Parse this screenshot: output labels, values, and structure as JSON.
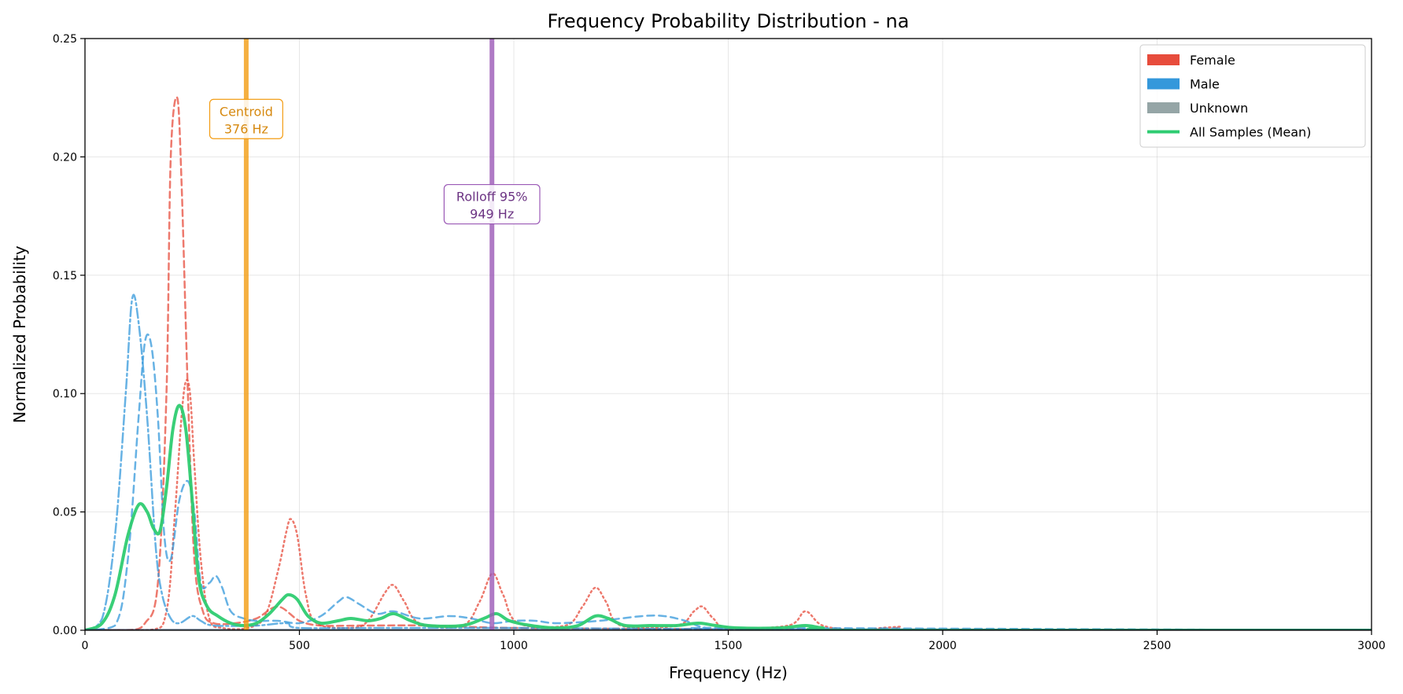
{
  "chart_data": {
    "type": "line",
    "title": "Frequency Probability Distribution - na",
    "xlabel": "Frequency (Hz)",
    "ylabel": "Normalized Probability",
    "xlim": [
      0,
      3000
    ],
    "ylim": [
      0,
      0.25
    ],
    "x_ticks": [
      0,
      500,
      1000,
      1500,
      2000,
      2500,
      3000
    ],
    "y_ticks": [
      0.0,
      0.05,
      0.1,
      0.15,
      0.2,
      0.25
    ],
    "x_tick_labels": [
      "0",
      "500",
      "1000",
      "1500",
      "2000",
      "2500",
      "3000"
    ],
    "y_tick_labels": [
      "0.00",
      "0.05",
      "0.10",
      "0.15",
      "0.20",
      "0.25"
    ],
    "grid": true,
    "legend_position": "top-right",
    "legend": [
      {
        "label": "Female",
        "color": "#e74c3c",
        "kind": "patch"
      },
      {
        "label": "Male",
        "color": "#3498db",
        "kind": "patch"
      },
      {
        "label": "Unknown",
        "color": "#95a5a6",
        "kind": "patch"
      },
      {
        "label": "All Samples (Mean)",
        "color": "#2ecc71",
        "kind": "line"
      }
    ],
    "markers": [
      {
        "label": "Centroid",
        "value_label": "376 Hz",
        "x": 376,
        "color": "#f39c12",
        "text_color": "#d68910",
        "label_y": 0.216
      },
      {
        "label": "Rolloff 95%",
        "value_label": "949 Hz",
        "x": 949,
        "color": "#9b59b6",
        "text_color": "#6c3483",
        "label_y": 0.18
      }
    ],
    "series": [
      {
        "group": "Female",
        "color": "#e74c3c",
        "dash": "8,5",
        "width": 2.5,
        "opacity": 0.75,
        "points": [
          [
            0,
            0
          ],
          [
            100,
            0
          ],
          [
            140,
            0.003
          ],
          [
            170,
            0.02
          ],
          [
            190,
            0.1
          ],
          [
            200,
            0.2
          ],
          [
            215,
            0.225
          ],
          [
            225,
            0.19
          ],
          [
            240,
            0.1
          ],
          [
            255,
            0.03
          ],
          [
            275,
            0.008
          ],
          [
            300,
            0.003
          ],
          [
            350,
            0.003
          ],
          [
            400,
            0.005
          ],
          [
            450,
            0.01
          ],
          [
            500,
            0.004
          ],
          [
            550,
            0.002
          ],
          [
            650,
            0.002
          ],
          [
            800,
            0.002
          ],
          [
            1000,
            0.001
          ],
          [
            1500,
            0.0005
          ],
          [
            3000,
            0
          ]
        ]
      },
      {
        "group": "Female",
        "color": "#e74c3c",
        "dash": "2,4",
        "width": 2.5,
        "opacity": 0.75,
        "points": [
          [
            0,
            0
          ],
          [
            150,
            0
          ],
          [
            190,
            0.008
          ],
          [
            210,
            0.05
          ],
          [
            225,
            0.09
          ],
          [
            235,
            0.105
          ],
          [
            245,
            0.1
          ],
          [
            255,
            0.07
          ],
          [
            270,
            0.03
          ],
          [
            290,
            0.005
          ],
          [
            320,
            0.001
          ],
          [
            380,
            0.001
          ],
          [
            420,
            0.006
          ],
          [
            450,
            0.025
          ],
          [
            470,
            0.042
          ],
          [
            480,
            0.047
          ],
          [
            495,
            0.04
          ],
          [
            515,
            0.015
          ],
          [
            540,
            0.003
          ],
          [
            620,
            0.001
          ],
          [
            660,
            0.004
          ],
          [
            700,
            0.016
          ],
          [
            720,
            0.019
          ],
          [
            745,
            0.012
          ],
          [
            780,
            0.003
          ],
          [
            880,
            0.002
          ],
          [
            920,
            0.012
          ],
          [
            950,
            0.024
          ],
          [
            975,
            0.015
          ],
          [
            1010,
            0.003
          ],
          [
            1120,
            0.002
          ],
          [
            1160,
            0.01
          ],
          [
            1190,
            0.018
          ],
          [
            1215,
            0.012
          ],
          [
            1250,
            0.002
          ],
          [
            1380,
            0.002
          ],
          [
            1420,
            0.008
          ],
          [
            1440,
            0.01
          ],
          [
            1465,
            0.005
          ],
          [
            1500,
            0.001
          ],
          [
            1640,
            0.002
          ],
          [
            1680,
            0.008
          ],
          [
            1720,
            0.002
          ],
          [
            1800,
            0
          ],
          [
            1880,
            0
          ],
          [
            1900,
            0.0015
          ],
          [
            1930,
            0
          ],
          [
            3000,
            0
          ]
        ]
      },
      {
        "group": "Male",
        "color": "#3498db",
        "dash": "12,4,3,4",
        "width": 2.5,
        "opacity": 0.75,
        "points": [
          [
            0,
            0
          ],
          [
            40,
            0.005
          ],
          [
            70,
            0.04
          ],
          [
            95,
            0.1
          ],
          [
            110,
            0.14
          ],
          [
            125,
            0.13
          ],
          [
            145,
            0.09
          ],
          [
            165,
            0.035
          ],
          [
            180,
            0.015
          ],
          [
            200,
            0.005
          ],
          [
            220,
            0.003
          ],
          [
            250,
            0.006
          ],
          [
            270,
            0.004
          ],
          [
            300,
            0.002
          ],
          [
            400,
            0.002
          ],
          [
            470,
            0.003
          ],
          [
            500,
            0.001
          ],
          [
            700,
            0.001
          ],
          [
            1000,
            0.001
          ],
          [
            1500,
            0.0005
          ],
          [
            3000,
            0
          ]
        ]
      },
      {
        "group": "Male",
        "color": "#3498db",
        "dash": "9,6",
        "width": 2.5,
        "opacity": 0.75,
        "points": [
          [
            0,
            0
          ],
          [
            70,
            0.002
          ],
          [
            100,
            0.03
          ],
          [
            125,
            0.09
          ],
          [
            140,
            0.122
          ],
          [
            155,
            0.12
          ],
          [
            170,
            0.09
          ],
          [
            185,
            0.04
          ],
          [
            200,
            0.03
          ],
          [
            220,
            0.055
          ],
          [
            240,
            0.063
          ],
          [
            255,
            0.05
          ],
          [
            270,
            0.02
          ],
          [
            290,
            0.02
          ],
          [
            305,
            0.023
          ],
          [
            320,
            0.018
          ],
          [
            340,
            0.008
          ],
          [
            370,
            0.005
          ],
          [
            400,
            0.004
          ],
          [
            450,
            0.004
          ],
          [
            500,
            0.003
          ],
          [
            550,
            0.006
          ],
          [
            590,
            0.012
          ],
          [
            610,
            0.014
          ],
          [
            640,
            0.011
          ],
          [
            680,
            0.007
          ],
          [
            720,
            0.008
          ],
          [
            780,
            0.005
          ],
          [
            850,
            0.006
          ],
          [
            900,
            0.005
          ],
          [
            950,
            0.003
          ],
          [
            1000,
            0.004
          ],
          [
            1050,
            0.004
          ],
          [
            1100,
            0.003
          ],
          [
            1200,
            0.004
          ],
          [
            1300,
            0.006
          ],
          [
            1350,
            0.006
          ],
          [
            1400,
            0.004
          ],
          [
            1450,
            0.001
          ],
          [
            1550,
            0.001
          ],
          [
            3000,
            0
          ]
        ]
      },
      {
        "group": "All Samples (Mean)",
        "color": "#2ecc71",
        "dash": "",
        "width": 4,
        "opacity": 0.95,
        "points": [
          [
            0,
            0
          ],
          [
            40,
            0.003
          ],
          [
            70,
            0.015
          ],
          [
            100,
            0.04
          ],
          [
            125,
            0.053
          ],
          [
            145,
            0.05
          ],
          [
            160,
            0.043
          ],
          [
            175,
            0.042
          ],
          [
            190,
            0.06
          ],
          [
            205,
            0.085
          ],
          [
            220,
            0.095
          ],
          [
            235,
            0.085
          ],
          [
            250,
            0.055
          ],
          [
            265,
            0.022
          ],
          [
            285,
            0.01
          ],
          [
            310,
            0.006
          ],
          [
            340,
            0.003
          ],
          [
            370,
            0.002
          ],
          [
            400,
            0.003
          ],
          [
            430,
            0.007
          ],
          [
            460,
            0.013
          ],
          [
            475,
            0.015
          ],
          [
            495,
            0.013
          ],
          [
            520,
            0.006
          ],
          [
            550,
            0.003
          ],
          [
            590,
            0.004
          ],
          [
            620,
            0.005
          ],
          [
            660,
            0.004
          ],
          [
            690,
            0.005
          ],
          [
            720,
            0.007
          ],
          [
            760,
            0.004
          ],
          [
            800,
            0.002
          ],
          [
            880,
            0.002
          ],
          [
            930,
            0.005
          ],
          [
            960,
            0.007
          ],
          [
            990,
            0.004
          ],
          [
            1040,
            0.002
          ],
          [
            1100,
            0.001
          ],
          [
            1150,
            0.002
          ],
          [
            1190,
            0.006
          ],
          [
            1220,
            0.005
          ],
          [
            1260,
            0.002
          ],
          [
            1320,
            0.002
          ],
          [
            1380,
            0.002
          ],
          [
            1430,
            0.003
          ],
          [
            1470,
            0.002
          ],
          [
            1520,
            0.001
          ],
          [
            1620,
            0.001
          ],
          [
            1680,
            0.002
          ],
          [
            1720,
            0.001
          ],
          [
            1800,
            0
          ],
          [
            3000,
            0
          ]
        ]
      }
    ]
  }
}
